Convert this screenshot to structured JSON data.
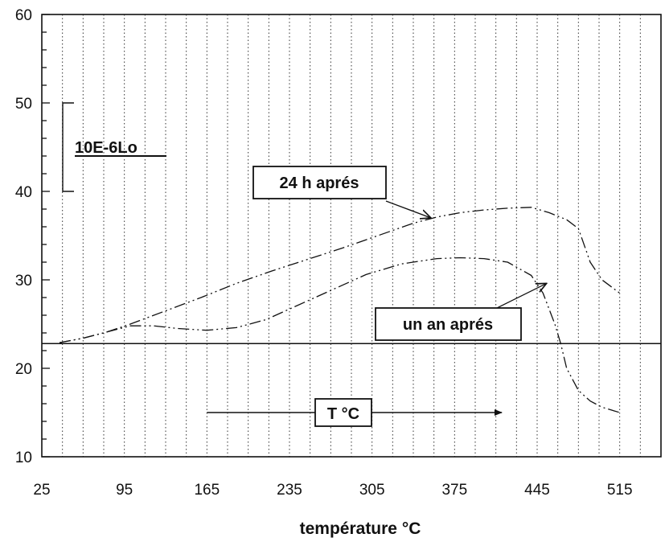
{
  "chart_data": {
    "type": "line",
    "title": "",
    "xlabel": "température °C",
    "ylabel": "",
    "x_ticks": [
      "25",
      "95",
      "165",
      "235",
      "305",
      "375",
      "445",
      "515"
    ],
    "y_ticks": [
      "10",
      "20",
      "30",
      "40",
      "50",
      "60"
    ],
    "xlim": [
      25,
      550
    ],
    "ylim": [
      10,
      60
    ],
    "grid": "vertical dotted lines",
    "reference_line": 22.8,
    "scale_bar": {
      "label": "10E-6Lo",
      "from": 40,
      "to": 50
    },
    "arrow_label": "T °C",
    "arrow_range": [
      165,
      415
    ],
    "series": [
      {
        "name": "24 h aprés",
        "line_style": "dash-dot-dot",
        "x": [
          40,
          60,
          80,
          100,
          130,
          160,
          190,
          220,
          250,
          280,
          310,
          340,
          360,
          380,
          400,
          420,
          440,
          455,
          470,
          480,
          490,
          500,
          515
        ],
        "y": [
          22.9,
          23.4,
          24.1,
          25.0,
          26.5,
          28.0,
          29.6,
          31.0,
          32.3,
          33.6,
          35.0,
          36.4,
          37.1,
          37.6,
          37.9,
          38.1,
          38.2,
          37.6,
          36.8,
          35.8,
          32.0,
          30.0,
          28.5
        ]
      },
      {
        "name": "un an aprés",
        "line_style": "dash-dot-dot",
        "x": [
          40,
          60,
          80,
          100,
          120,
          140,
          165,
          190,
          215,
          240,
          270,
          300,
          330,
          360,
          380,
          400,
          420,
          440,
          450,
          460,
          465,
          470,
          480,
          490,
          500,
          515
        ],
        "y": [
          22.9,
          23.4,
          24.1,
          24.8,
          24.8,
          24.5,
          24.3,
          24.6,
          25.5,
          27.0,
          28.8,
          30.6,
          31.8,
          32.4,
          32.5,
          32.4,
          32.0,
          30.5,
          28.5,
          25.0,
          22.8,
          20.0,
          17.5,
          16.3,
          15.6,
          15.0
        ]
      }
    ]
  },
  "labels": {
    "curve_24h": "24 h aprés",
    "curve_1an": "un an aprés"
  }
}
